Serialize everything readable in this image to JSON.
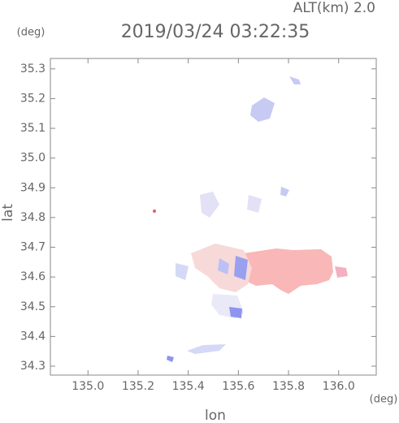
{
  "chart_data": {
    "type": "map",
    "title": "2019/03/24 03:22:35",
    "subtitle": "ALT(km) 2.0",
    "x_label": "lon",
    "y_label": "lat",
    "x_unit": "(deg)",
    "y_unit": "(deg)",
    "xlim": [
      134.85,
      136.15
    ],
    "ylim": [
      34.27,
      35.335
    ],
    "xticks": [
      {
        "value": 135.0,
        "label": "135.0"
      },
      135.2,
      135.4,
      135.6,
      135.8,
      {
        "value": 136.0,
        "label": "136.0"
      }
    ],
    "yticks": [
      34.3,
      34.4,
      34.5,
      34.6,
      34.7,
      34.8,
      34.9,
      {
        "value": 35.0,
        "label": "35.0"
      },
      35.1,
      35.2,
      35.3
    ]
  }
}
